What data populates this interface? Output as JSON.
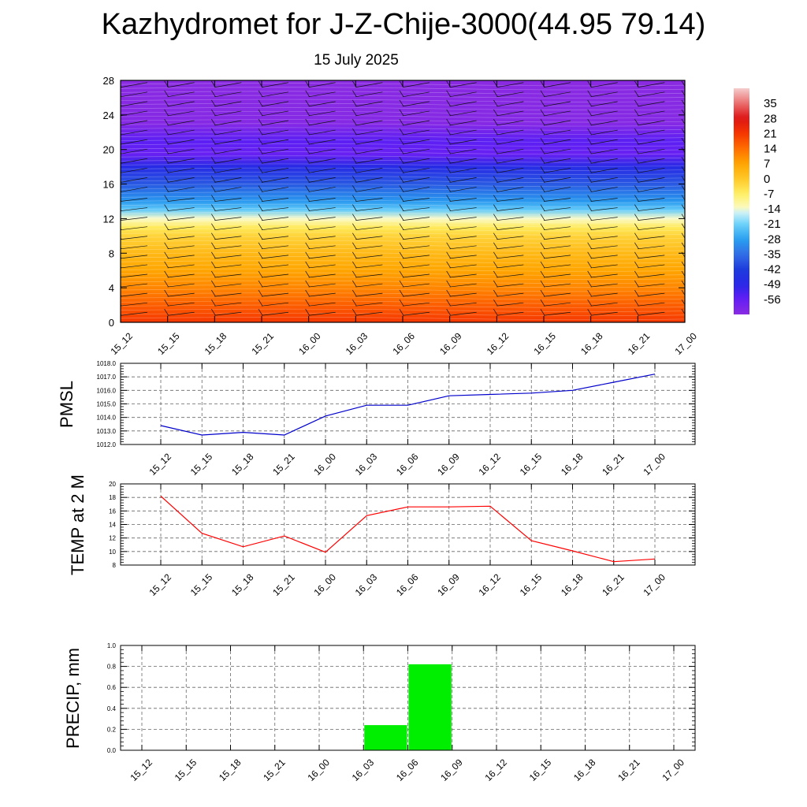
{
  "page": {
    "title": "Kazhydromet for J-Z-Chije-3000(44.95 79.14)",
    "date": "15 July 2025"
  },
  "chart_data": [
    {
      "type": "heatmap",
      "title": "",
      "xlabel": "",
      "ylabel": "",
      "x_ticks": [
        "15_12",
        "15_15",
        "15_18",
        "15_21",
        "16_00",
        "16_03",
        "16_06",
        "16_09",
        "16_12",
        "16_15",
        "16_18",
        "16_21",
        "17_00"
      ],
      "y_ticks": [
        "0",
        "4",
        "8",
        "12",
        "16",
        "20",
        "24",
        "28"
      ],
      "ylim": [
        0,
        28
      ],
      "colorbar_labels": [
        "35",
        "28",
        "21",
        "14",
        "7",
        "0",
        "-7",
        "-14",
        "-21",
        "-28",
        "-35",
        "-42",
        "-49",
        "-56"
      ],
      "colorbar_range": [
        -63,
        42
      ],
      "profile": [
        {
          "h": 0,
          "t": 21
        },
        {
          "h": 2,
          "t": 16
        },
        {
          "h": 4,
          "t": 11
        },
        {
          "h": 6,
          "t": 7
        },
        {
          "h": 8,
          "t": 3
        },
        {
          "h": 10,
          "t": -2
        },
        {
          "h": 11,
          "t": -6
        },
        {
          "h": 12,
          "t": -14
        },
        {
          "h": 13,
          "t": -22
        },
        {
          "h": 14,
          "t": -29
        },
        {
          "h": 16,
          "t": -38
        },
        {
          "h": 18,
          "t": -48
        },
        {
          "h": 19.5,
          "t": -57
        },
        {
          "h": 21,
          "t": -55
        },
        {
          "h": 23,
          "t": -62
        },
        {
          "h": 28,
          "t": -63
        }
      ],
      "wind_barbs": true
    },
    {
      "type": "line",
      "ylabel": "PMSL",
      "x_ticks": [
        "15_12",
        "15_15",
        "15_18",
        "15_21",
        "16_00",
        "16_03",
        "16_06",
        "16_09",
        "16_12",
        "16_15",
        "16_18",
        "16_21",
        "17_00"
      ],
      "y_ticks": [
        "1012.0",
        "1013.0",
        "1014.0",
        "1015.0",
        "1016.0",
        "1017.0",
        "1018.0"
      ],
      "ylim": [
        1012,
        1018
      ],
      "grid": true,
      "color": "#0000cc",
      "values": [
        1013.4,
        1012.7,
        1012.9,
        1012.7,
        1014.1,
        1014.9,
        1014.9,
        1015.6,
        1015.7,
        1015.8,
        1016.0,
        1016.6,
        1017.2
      ]
    },
    {
      "type": "line",
      "ylabel": "TEMP at 2 M",
      "x_ticks": [
        "15_12",
        "15_15",
        "15_18",
        "15_21",
        "16_00",
        "16_03",
        "16_06",
        "16_09",
        "16_12",
        "16_15",
        "16_18",
        "16_21",
        "17_00"
      ],
      "y_ticks": [
        "8",
        "10",
        "12",
        "14",
        "16",
        "18",
        "20"
      ],
      "ylim": [
        8,
        20
      ],
      "grid": true,
      "color": "#ff0000",
      "values": [
        18.2,
        12.7,
        10.7,
        12.3,
        9.9,
        15.3,
        16.6,
        16.6,
        16.7,
        11.6,
        10.1,
        8.5,
        8.9
      ]
    },
    {
      "type": "bar",
      "ylabel": "PRECIP, mm",
      "x_ticks": [
        "15_12",
        "15_15",
        "15_18",
        "15_21",
        "16_00",
        "16_03",
        "16_06",
        "16_09",
        "16_12",
        "16_15",
        "16_18",
        "16_21",
        "17_00"
      ],
      "y_ticks": [
        "0.0",
        "0.2",
        "0.4",
        "0.6",
        "0.8",
        "1.0"
      ],
      "ylim": [
        0,
        1.0
      ],
      "grid": true,
      "color": "#00ee00",
      "values": [
        0,
        0,
        0,
        0,
        0,
        0,
        0.24,
        0.82,
        0,
        0,
        0,
        0,
        0
      ]
    }
  ]
}
